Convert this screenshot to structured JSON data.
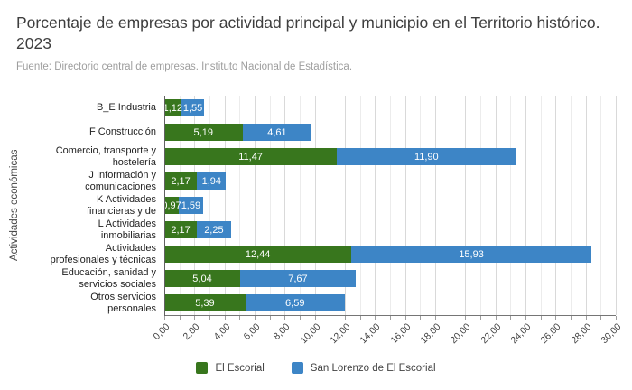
{
  "header": {
    "title": "Porcentaje de empresas por actividad principal y municipio en el Territorio histórico. 2023",
    "source": "Fuente: Directorio central de empresas. Instituto Nacional de Estadística."
  },
  "chart_data": {
    "type": "bar",
    "orientation": "horizontal-stacked",
    "title": "Porcentaje de empresas por actividad principal y municipio en el Territorio histórico. 2023",
    "xlabel": "",
    "ylabel": "Actividades económicas",
    "xlim": [
      0,
      30
    ],
    "x_tick_step": 2,
    "x_ticks": [
      "0,00",
      "2,00",
      "4,00",
      "6,00",
      "8,00",
      "10,00",
      "12,00",
      "14,00",
      "16,00",
      "18,00",
      "20,00",
      "22,00",
      "24,00",
      "26,00",
      "28,00",
      "30,00"
    ],
    "grid": true,
    "legend_position": "bottom",
    "categories": [
      "B_E Industria",
      "F Construcción",
      "Comercio, transporte y\nhostelería",
      "J Información y\ncomunicaciones",
      "K Actividades\nfinancieras y de",
      "L Actividades\ninmobiliarias",
      "Actividades\nprofesionales y técnicas",
      "Educación, sanidad y\nservicios sociales",
      "Otros servicios\npersonales"
    ],
    "series": [
      {
        "name": "El Escorial",
        "color": "#38761d",
        "values": [
          1.12,
          5.19,
          11.47,
          2.17,
          0.97,
          2.17,
          12.44,
          5.04,
          5.39
        ],
        "labels": [
          "1,12",
          "5,19",
          "11,47",
          "2,17",
          "0,97",
          "2,17",
          "12,44",
          "5,04",
          "5,39"
        ]
      },
      {
        "name": "San Lorenzo de El Escorial",
        "color": "#3d85c6",
        "values": [
          1.55,
          4.61,
          11.9,
          1.94,
          1.59,
          2.25,
          15.93,
          7.67,
          6.59
        ],
        "labels": [
          "1,55",
          "4,61",
          "11,90",
          "1,94",
          "1,59",
          "2,25",
          "15,93",
          "7,67",
          "6,59"
        ]
      }
    ]
  }
}
